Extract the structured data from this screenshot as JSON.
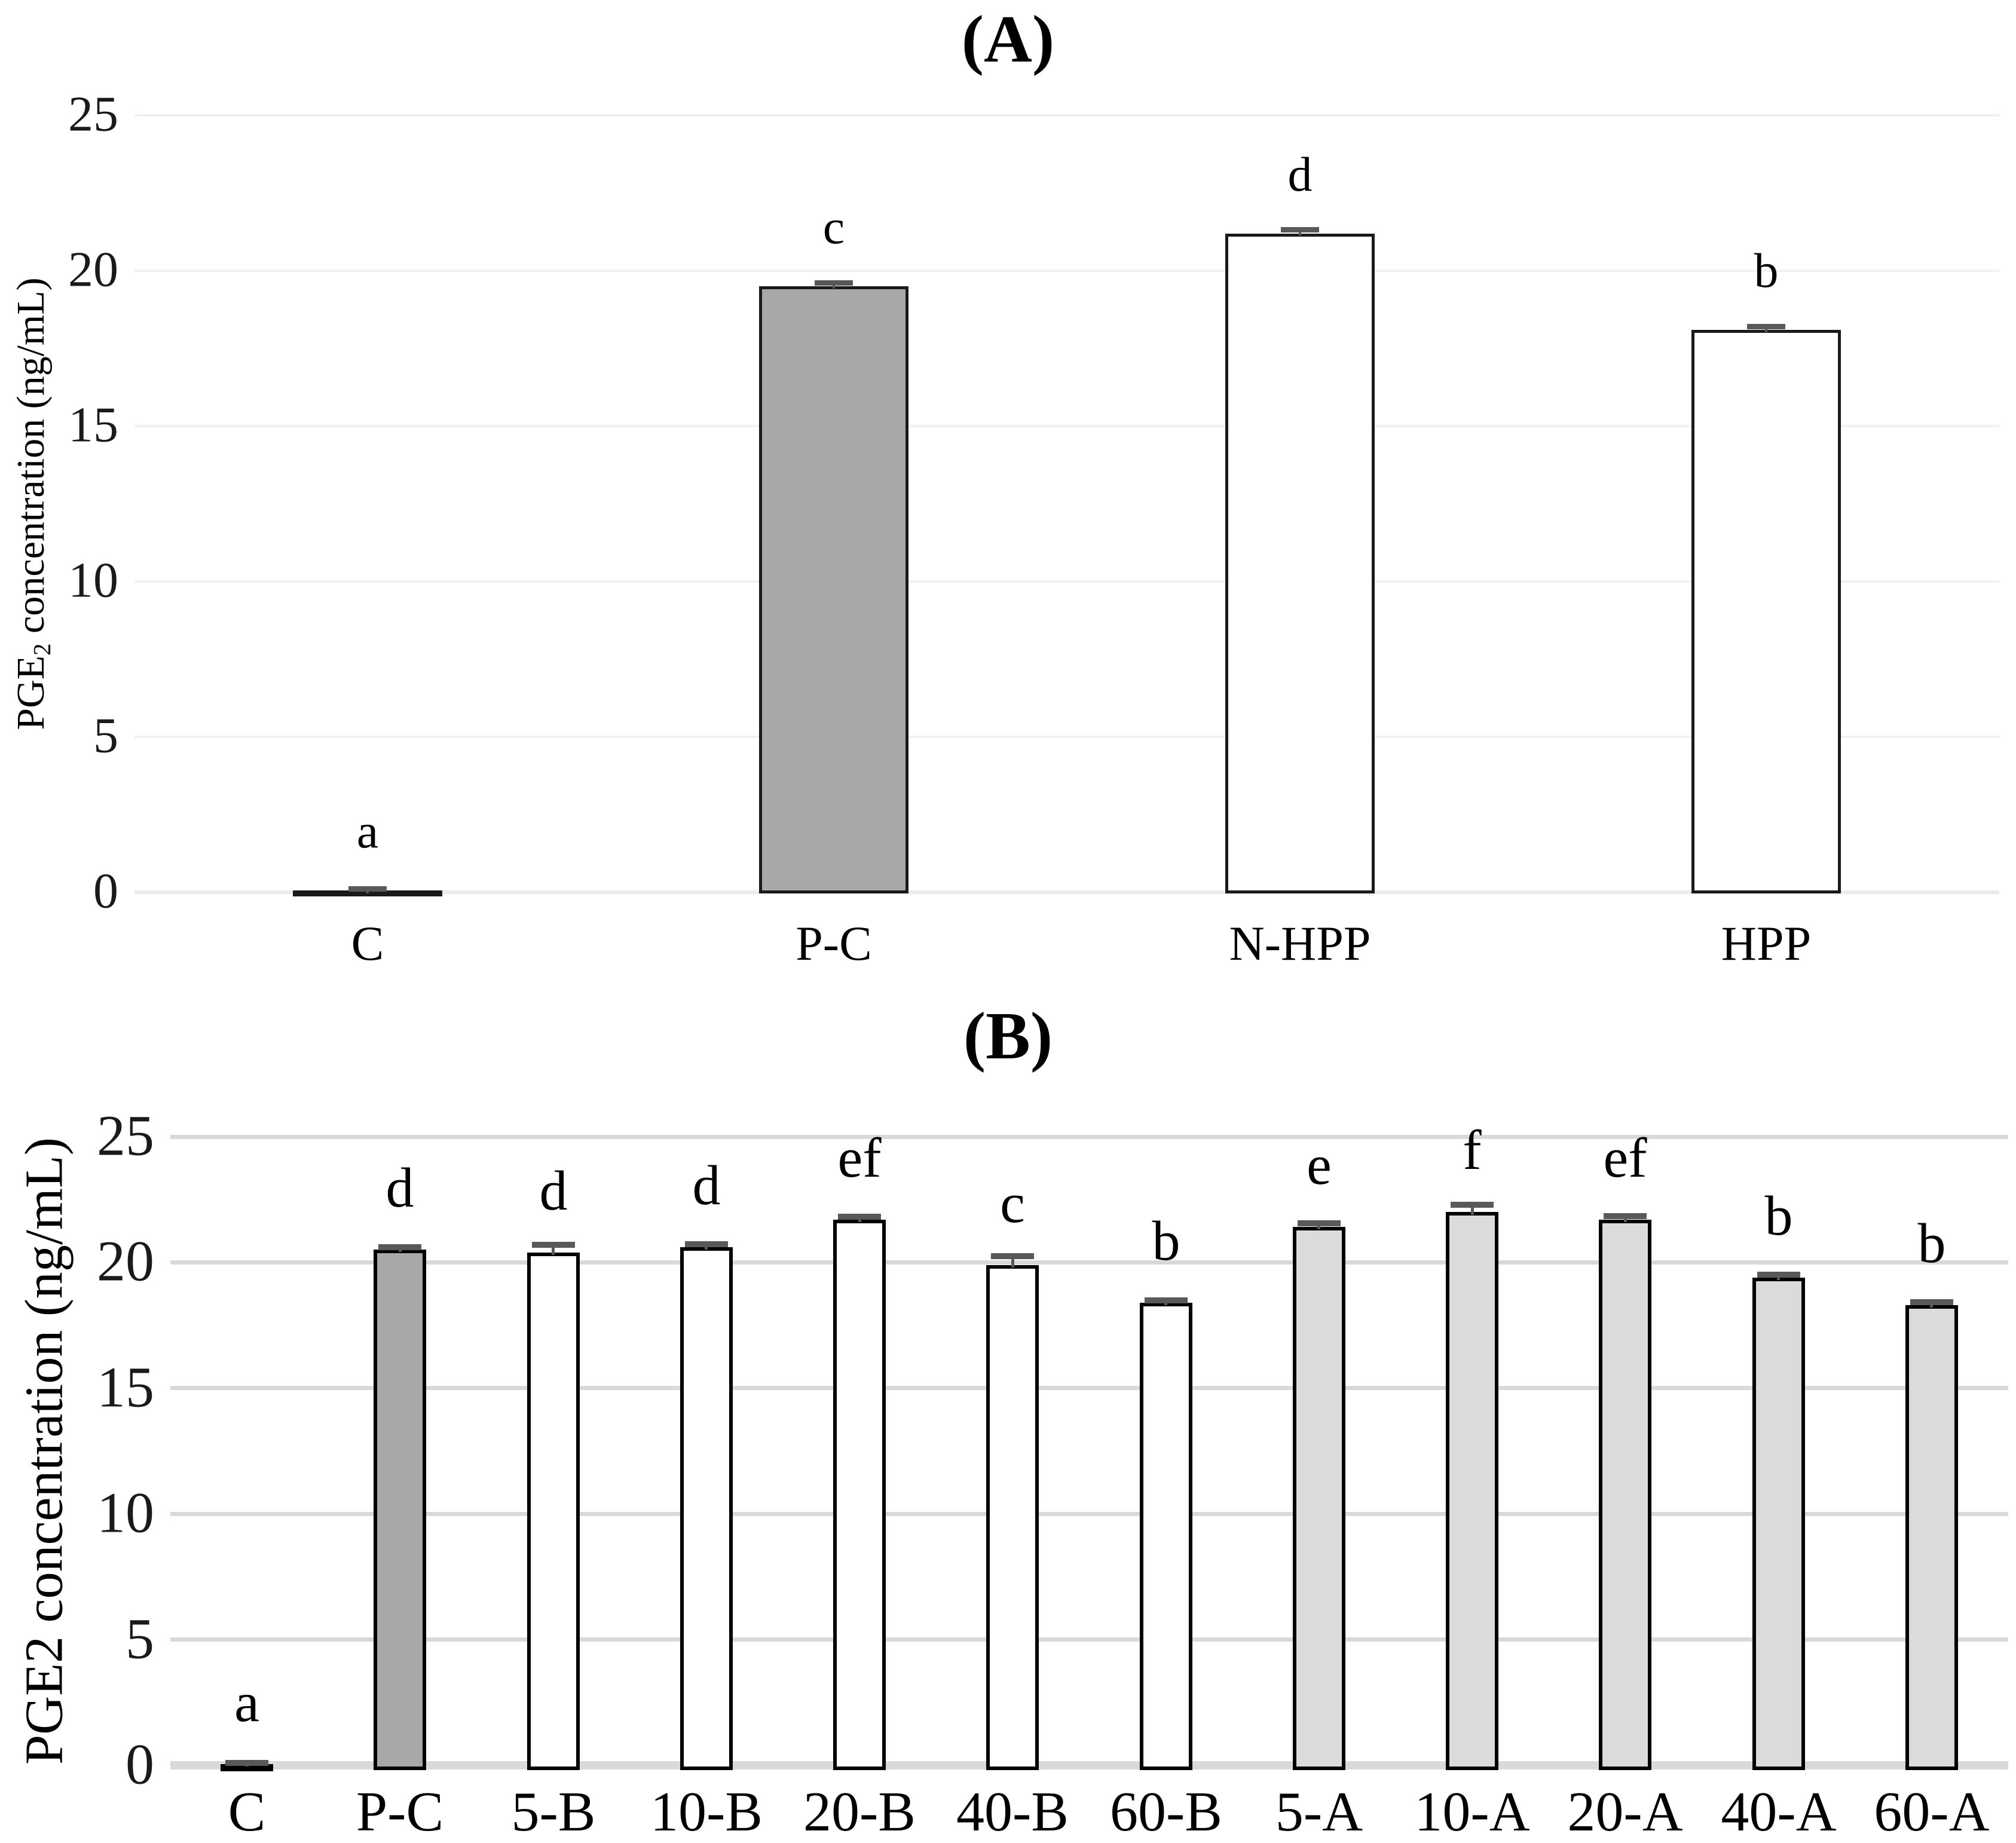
{
  "page": {
    "background": "#FFFFFF"
  },
  "chart_data": [
    {
      "panel_label": "(A)",
      "type": "bar",
      "title": "(A)",
      "xlabel": "",
      "ylabel": {
        "pre": "PGE",
        "sub": "2",
        "post": " concentration (ng/mL)"
      },
      "ylim": [
        0,
        25
      ],
      "yticks": [
        0,
        5,
        10,
        15,
        20,
        25
      ],
      "grid": "horizontal",
      "legend_position": "none",
      "categories": [
        "C",
        "P-C",
        "N-HPP",
        "HPP"
      ],
      "values": [
        0.05,
        19.5,
        21.2,
        18.1
      ],
      "errors": [
        0.05,
        0.1,
        0.12,
        0.1
      ],
      "sig_letters": [
        "a",
        "c",
        "d",
        "b"
      ],
      "bar_fills": [
        "#FFFFFF",
        "#A8A8A8",
        "#FFFFFF",
        "#FFFFFF"
      ],
      "bar_border_color": "#1A1A1A",
      "error_color": "#595959",
      "grid_color": "#F1F1F1",
      "baseline_color": "#EBEBEB"
    },
    {
      "panel_label": "(B)",
      "type": "bar",
      "title": "(B)",
      "xlabel": "",
      "ylabel": {
        "pre": "PGE2",
        "sub": "",
        "post": " concentration (ng/mL)"
      },
      "ylim": [
        0,
        25
      ],
      "yticks": [
        0,
        5,
        10,
        15,
        20,
        25
      ],
      "grid": "horizontal",
      "legend_position": "none",
      "categories": [
        "C",
        "P-C",
        "5-B",
        "10-B",
        "20-B",
        "40-B",
        "60-B",
        "5-A",
        "10-A",
        "20-A",
        "40-A",
        "60-A"
      ],
      "values": [
        0.05,
        20.5,
        20.4,
        20.6,
        21.7,
        19.9,
        18.4,
        21.4,
        22.0,
        21.7,
        19.4,
        18.3
      ],
      "errors": [
        0.05,
        0.1,
        0.3,
        0.12,
        0.12,
        0.35,
        0.1,
        0.15,
        0.3,
        0.15,
        0.12,
        0.12
      ],
      "sig_letters": [
        "a",
        "d",
        "d",
        "d",
        "ef",
        "c",
        "b",
        "e",
        "f",
        "ef",
        "b",
        "b"
      ],
      "bar_fills": [
        "#FFFFFF",
        "#A8A8A8",
        "#FFFFFF",
        "#FFFFFF",
        "#FFFFFF",
        "#FFFFFF",
        "#FFFFFF",
        "#DBDBDB",
        "#DBDBDB",
        "#DBDBDB",
        "#DBDBDB",
        "#DBDBDB"
      ],
      "bar_border_color": "#000000",
      "error_color": "#595959",
      "grid_color": "#D9D9D9",
      "baseline_color": "#D9D9D9"
    }
  ]
}
